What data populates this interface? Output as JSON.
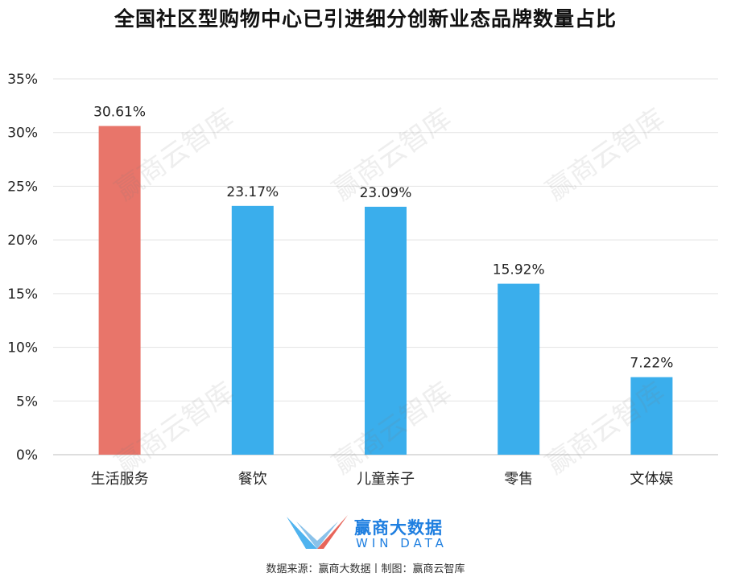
{
  "title": "全国社区型购物中心已引进细分创新业态品牌数量占比",
  "chart_data": {
    "type": "bar",
    "categories": [
      "生活服务",
      "餐饮",
      "儿童亲子",
      "零售",
      "文体娱"
    ],
    "values": [
      30.61,
      23.17,
      23.09,
      15.92,
      7.22
    ],
    "data_labels": [
      "30.61%",
      "23.17%",
      "23.09%",
      "15.92%",
      "7.22%"
    ],
    "bar_colors": [
      "#e8756a",
      "#3aaeec",
      "#3aaeec",
      "#3aaeec",
      "#3aaeec"
    ],
    "ylim": [
      0,
      35
    ],
    "yticks": [
      0,
      5,
      10,
      15,
      20,
      25,
      30,
      35
    ],
    "ytick_labels": [
      "0%",
      "5%",
      "10%",
      "15%",
      "20%",
      "25%",
      "30%",
      "35%"
    ],
    "grid": true,
    "xlabel": "",
    "ylabel": ""
  },
  "logo": {
    "name": "赢商大数据",
    "subtitle": "WIN DATA"
  },
  "watermark": "赢商云智库",
  "source": "数据来源：赢商大数据丨制图：赢商云智库"
}
